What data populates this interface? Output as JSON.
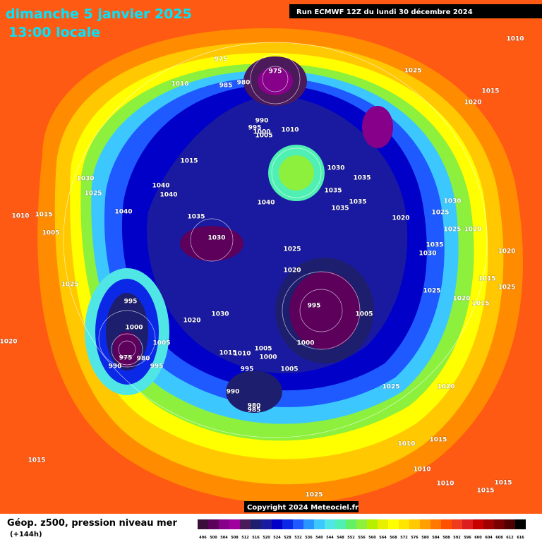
{
  "map": {
    "title": "dimanche 5 janvier 2025",
    "subtitle": "13:00 locale",
    "run": "Run ECMWF 12Z du lundi 30 décembre 2024",
    "copyright": "Copyright 2024 Meteociel.fr",
    "legend_title": "Géop. z500, pression niveau mer",
    "lead": "(+144h)",
    "scale": {
      "labels": [
        496,
        500,
        504,
        508,
        512,
        516,
        520,
        524,
        528,
        532,
        536,
        540,
        544,
        548,
        552,
        556,
        560,
        564,
        568,
        572,
        576,
        580,
        584,
        588,
        592,
        596,
        600,
        604,
        608,
        612,
        616
      ],
      "colors": [
        "#3b0d3b",
        "#5c005c",
        "#86008a",
        "#a0009e",
        "#4a1a5a",
        "#1e1e6e",
        "#1a1aa0",
        "#0000c8",
        "#0a28e6",
        "#1e5aff",
        "#2896ff",
        "#3cc8ff",
        "#50e6e6",
        "#50f0b4",
        "#64f064",
        "#8cf03c",
        "#b4f000",
        "#e6f000",
        "#ffff00",
        "#ffe600",
        "#ffc800",
        "#ffa000",
        "#ff7800",
        "#ff5000",
        "#f03c1e",
        "#dc1e1e",
        "#c80000",
        "#a00000",
        "#780000",
        "#500000",
        "#000000"
      ]
    },
    "isobar_labels": [
      975,
      975,
      980,
      985,
      1010,
      990,
      995,
      1000,
      1005,
      1010,
      1025,
      1015,
      1020,
      1010,
      1015,
      1030,
      1025,
      1040,
      1040,
      1040,
      1040,
      1030,
      1035,
      1035,
      1035,
      1035,
      1035,
      1030,
      1025,
      1020,
      1020,
      1025,
      1030,
      1025,
      1020,
      1015,
      1010,
      1005,
      995,
      1000,
      1005,
      995,
      1000,
      1005,
      975,
      980,
      990,
      995,
      1015,
      1010,
      1005,
      1000,
      995,
      1005,
      990,
      980,
      985,
      1030,
      1020,
      1025,
      1020,
      1015,
      1025,
      1020,
      1025,
      1015,
      1010,
      1010,
      1010,
      1015,
      1015,
      1025,
      1035,
      1030,
      1025,
      1015,
      1020,
      1015,
      1020
    ]
  }
}
